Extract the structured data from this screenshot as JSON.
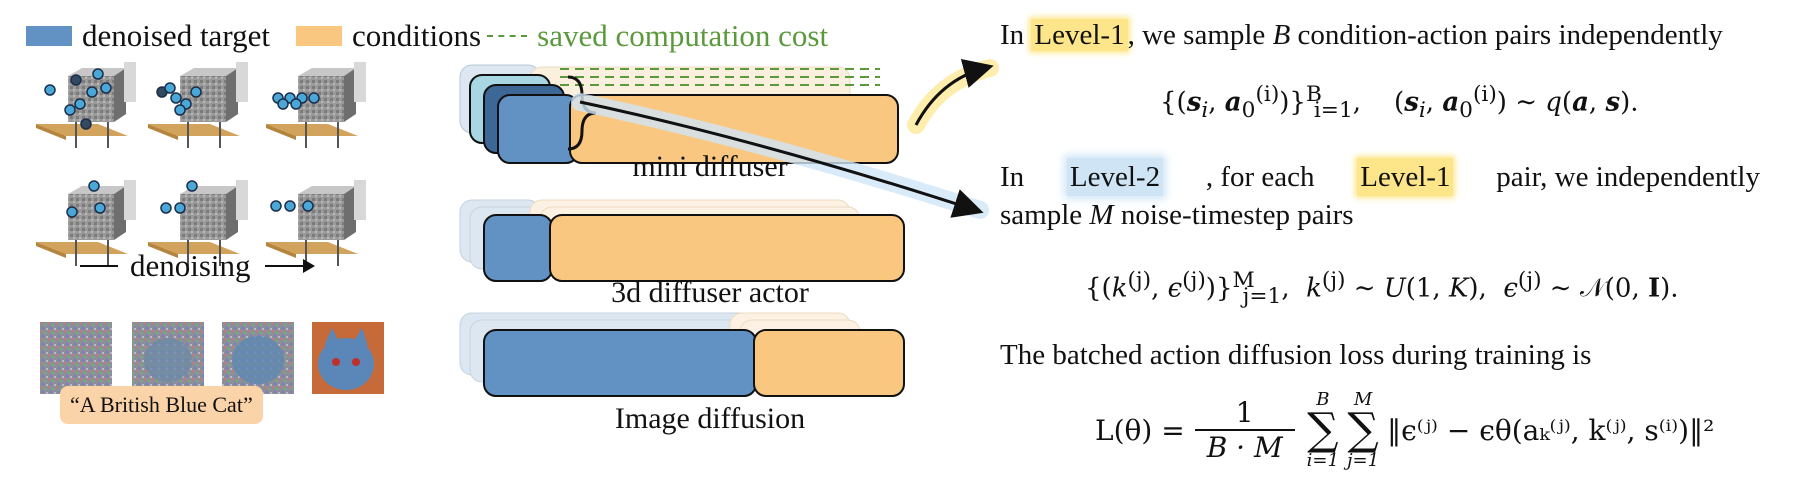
{
  "legend": {
    "denoised": "denoised target",
    "conditions": "conditions",
    "saved": "saved computation cost",
    "colors": {
      "blue": "#6291c4",
      "orange": "#f9c77f",
      "green": "#5a9a3c"
    }
  },
  "left": {
    "denoising_label": "denoising",
    "caption": "“A British Blue Cat”"
  },
  "diagrams": {
    "mini": "mini diffuser",
    "actor": "3d diffuser actor",
    "image": "Image diffusion"
  },
  "text": {
    "p1_pre": "In ",
    "level1": "Level-1",
    "p1_post": ", we sample ",
    "B": "B",
    "p1_end": " condition-action pairs independently",
    "eq1_left": "{(s",
    "eq1_mid": "i",
    "eq1_rest": ", a₀⁽ⁱ⁾)}",
    "eq1_limits": "B\ni=1",
    "eq1_right": ",    (sᵢ, a₀⁽ⁱ⁾) ∼ q(a, s).",
    "p2_a": "In ",
    "level2": "Level-2",
    "p2_b": ", for each ",
    "level1b": "Level-1",
    "p2_c": " pair, we independently",
    "p2_d": "sample ",
    "M": "M",
    "p2_e": " noise-timestep pairs",
    "eq2": "{(k⁽ʲ⁾, ϵ⁽ʲ⁾)}ⱼ₌₁ᴹ,  k⁽ʲ⁾ ∼ U(1, K),  ϵ⁽ʲ⁾ ∼ 𝒩(0, I).",
    "p3": "The batched action diffusion loss during training is",
    "eq3_lhs": "L(θ) =",
    "eq3_num": "1",
    "eq3_den": "B · M",
    "eq3_sum1_top": "B",
    "eq3_sum1_bot": "i=1",
    "eq3_sum2_top": "M",
    "eq3_sum2_bot": "j=1",
    "eq3_body": "‖ϵ⁽ʲ⁾ − ϵθ(aₖ⁽ʲ⁾, k⁽ʲ⁾, s⁽ⁱ⁾)‖²"
  }
}
